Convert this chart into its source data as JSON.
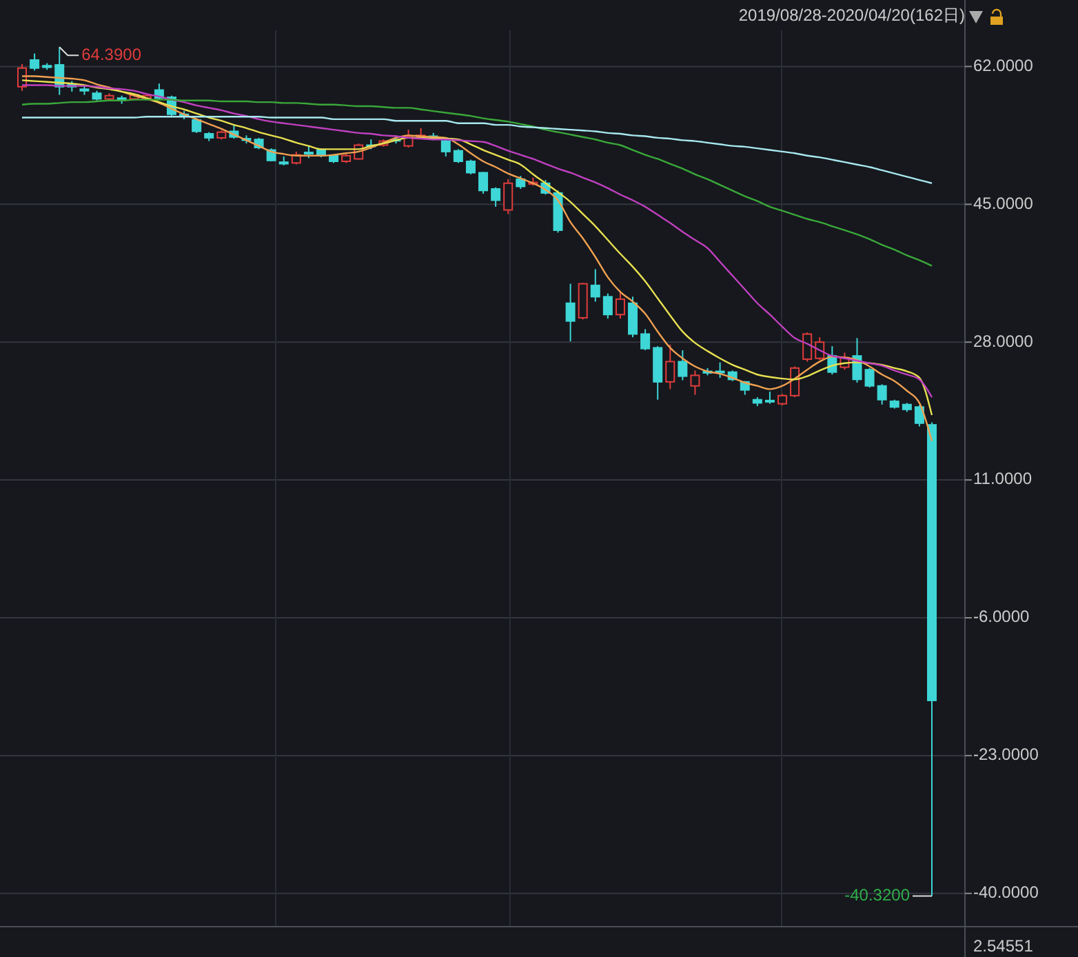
{
  "chart_data": {
    "type": "candlestick",
    "title": "2019/08/28-2020/04/20(162日)",
    "categories": [
      null,
      null,
      null,
      null,
      null,
      null,
      null,
      null,
      null,
      null,
      null,
      null,
      null,
      null,
      null,
      null,
      null,
      null,
      null,
      null,
      null,
      null,
      null,
      null,
      null,
      null,
      null,
      null,
      null,
      null,
      null,
      null,
      null,
      null,
      null,
      null,
      null,
      null,
      null,
      null,
      null,
      null,
      null,
      null,
      null,
      null,
      null,
      null,
      null,
      null,
      null,
      null,
      null,
      null,
      null,
      null,
      null,
      null,
      null,
      null,
      null,
      null,
      null,
      null,
      null,
      null,
      null,
      null,
      null,
      null,
      null,
      null,
      null,
      null
    ],
    "ylim": [
      -44.1,
      70.2
    ],
    "yticks": [
      {
        "value": 62,
        "label": "62.0000"
      },
      {
        "value": 45,
        "label": "45.0000"
      },
      {
        "value": 28,
        "label": "28.0000"
      },
      {
        "value": 11,
        "label": "11.0000"
      },
      {
        "value": -6,
        "label": "-6.0000"
      },
      {
        "value": -23,
        "label": "-23.0000"
      },
      {
        "value": -40,
        "label": "-40.0000"
      }
    ],
    "grid": "y",
    "annotations": [
      "64.3900",
      "-40.3200",
      "2.54551"
    ],
    "ohlc": [
      [
        59.5,
        62.3,
        59.0,
        61.8
      ],
      [
        62.8,
        63.6,
        61.5,
        61.8
      ],
      [
        62.1,
        62.4,
        61.6,
        61.9
      ],
      [
        62.2,
        64.39,
        58.5,
        59.5
      ],
      [
        59.8,
        60.2,
        58.9,
        59.5
      ],
      [
        59.2,
        59.6,
        58.5,
        59.0
      ],
      [
        58.7,
        59.0,
        57.8,
        58.0
      ],
      [
        58.0,
        58.7,
        57.8,
        58.4
      ],
      [
        58.1,
        58.4,
        57.4,
        57.9
      ],
      [
        58.0,
        58.7,
        57.9,
        58.5
      ],
      [
        58.1,
        58.6,
        57.9,
        58.4
      ],
      [
        59.1,
        59.9,
        57.9,
        58.1
      ],
      [
        58.2,
        58.4,
        55.8,
        56.1
      ],
      [
        56.1,
        56.5,
        55.5,
        55.9
      ],
      [
        55.4,
        55.6,
        53.8,
        54.0
      ],
      [
        53.7,
        53.9,
        52.8,
        53.2
      ],
      [
        53.2,
        54.1,
        53.0,
        53.9
      ],
      [
        54.0,
        54.8,
        53.1,
        53.3
      ],
      [
        53.1,
        53.5,
        52.5,
        52.9
      ],
      [
        53.0,
        53.2,
        51.8,
        52.0
      ],
      [
        51.7,
        51.9,
        50.3,
        50.4
      ],
      [
        50.2,
        50.9,
        49.8,
        50.0
      ],
      [
        50.1,
        51.5,
        49.9,
        51.1
      ],
      [
        51.4,
        52.2,
        50.7,
        51.3
      ],
      [
        51.7,
        51.9,
        50.8,
        51.0
      ],
      [
        51.0,
        51.1,
        50.1,
        50.3
      ],
      [
        50.3,
        51.2,
        50.1,
        51.0
      ],
      [
        50.6,
        52.5,
        50.5,
        52.3
      ],
      [
        52.3,
        53.0,
        51.8,
        52.2
      ],
      [
        52.3,
        53.0,
        52.1,
        52.8
      ],
      [
        53.0,
        53.5,
        52.5,
        52.9
      ],
      [
        52.2,
        54.2,
        52.0,
        53.4
      ],
      [
        53.3,
        54.4,
        53.1,
        53.5
      ],
      [
        53.4,
        53.8,
        52.9,
        53.1
      ],
      [
        52.8,
        53.0,
        50.9,
        51.5
      ],
      [
        51.6,
        51.8,
        50.1,
        50.3
      ],
      [
        50.3,
        50.5,
        48.7,
        48.9
      ],
      [
        48.9,
        49.0,
        46.3,
        46.7
      ],
      [
        46.9,
        47.1,
        44.7,
        45.5
      ],
      [
        44.3,
        48.1,
        43.8,
        47.6
      ],
      [
        48.1,
        48.5,
        46.9,
        47.2
      ],
      [
        47.5,
        48.3,
        47.3,
        47.7
      ],
      [
        47.6,
        48.0,
        46.2,
        46.4
      ],
      [
        46.4,
        46.7,
        41.5,
        41.8
      ],
      [
        32.8,
        35.2,
        28.1,
        30.6
      ],
      [
        31.0,
        35.3,
        30.8,
        35.2
      ],
      [
        35.0,
        37.0,
        33.0,
        33.6
      ],
      [
        33.6,
        34.0,
        30.9,
        31.4
      ],
      [
        31.4,
        34.3,
        30.9,
        33.3
      ],
      [
        32.8,
        33.6,
        28.6,
        29.0
      ],
      [
        29.0,
        29.6,
        27.0,
        27.2
      ],
      [
        27.3,
        27.5,
        20.9,
        23.1
      ],
      [
        23.1,
        27.7,
        22.2,
        25.6
      ],
      [
        25.6,
        27.0,
        23.3,
        23.8
      ],
      [
        22.6,
        24.5,
        21.5,
        23.9
      ],
      [
        24.4,
        24.8,
        23.9,
        24.2
      ],
      [
        24.4,
        25.5,
        23.6,
        24.3
      ],
      [
        24.3,
        24.5,
        23.2,
        23.4
      ],
      [
        23.1,
        23.2,
        21.5,
        22.1
      ],
      [
        20.9,
        21.2,
        20.1,
        20.5
      ],
      [
        20.8,
        21.9,
        20.4,
        20.7
      ],
      [
        20.4,
        21.6,
        20.2,
        21.4
      ],
      [
        21.4,
        25.0,
        21.2,
        24.8
      ],
      [
        25.9,
        29.2,
        25.6,
        29.0
      ],
      [
        26.0,
        28.6,
        25.8,
        28.0
      ],
      [
        26.3,
        27.5,
        24.0,
        24.3
      ],
      [
        24.9,
        26.7,
        24.6,
        26.1
      ],
      [
        26.3,
        28.5,
        23.0,
        23.4
      ],
      [
        24.6,
        24.8,
        22.4,
        22.6
      ],
      [
        22.6,
        22.8,
        20.3,
        20.9
      ],
      [
        20.7,
        20.9,
        19.8,
        20.0
      ],
      [
        20.3,
        20.5,
        19.4,
        19.7
      ],
      [
        20.0,
        20.2,
        17.6,
        18.0
      ],
      [
        17.8,
        18.1,
        -40.32,
        -16.2
      ]
    ],
    "colors": [
      "#e03c3c",
      "#3ed6d6",
      "#3ed6d6",
      "#3ed6d6",
      "#3ed6d6",
      "#3ed6d6",
      "#3ed6d6",
      "#e03c3c",
      "#3ed6d6",
      "#e03c3c",
      "#e03c3c",
      "#3ed6d6",
      "#3ed6d6",
      "#3ed6d6",
      "#3ed6d6",
      "#3ed6d6",
      "#e03c3c",
      "#3ed6d6",
      "#3ed6d6",
      "#3ed6d6",
      "#3ed6d6",
      "#3ed6d6",
      "#e03c3c",
      "#3ed6d6",
      "#3ed6d6",
      "#3ed6d6",
      "#e03c3c",
      "#e03c3c",
      "#3ed6d6",
      "#e03c3c",
      "#3ed6d6",
      "#e03c3c",
      "#e03c3c",
      "#3ed6d6",
      "#3ed6d6",
      "#3ed6d6",
      "#3ed6d6",
      "#3ed6d6",
      "#3ed6d6",
      "#e03c3c",
      "#3ed6d6",
      "#e03c3c",
      "#3ed6d6",
      "#3ed6d6",
      "#3ed6d6",
      "#e03c3c",
      "#3ed6d6",
      "#3ed6d6",
      "#e03c3c",
      "#3ed6d6",
      "#3ed6d6",
      "#3ed6d6",
      "#e03c3c",
      "#3ed6d6",
      "#e03c3c",
      "#3ed6d6",
      "#3ed6d6",
      "#3ed6d6",
      "#3ed6d6",
      "#3ed6d6",
      "#3ed6d6",
      "#e03c3c",
      "#e03c3c",
      "#e03c3c",
      "#e03c3c",
      "#3ed6d6",
      "#e03c3c",
      "#3ed6d6",
      "#3ed6d6",
      "#3ed6d6",
      "#3ed6d6",
      "#3ed6d6",
      "#3ed6d6",
      "#3ed6d6"
    ],
    "series": [
      {
        "type": "line",
        "color": "#f0a050",
        "values": [
          60.8,
          60.8,
          60.7,
          60.6,
          60.5,
          60.3,
          59.8,
          59.4,
          58.9,
          58.4,
          58.0,
          57.5,
          56.8,
          56.1,
          55.5,
          54.9,
          54.3,
          53.6,
          52.9,
          52.2,
          51.5,
          51.2,
          51.0,
          51.0,
          51.0,
          51.1,
          51.3,
          51.5,
          52.0,
          52.6,
          53.2,
          53.5,
          53.4,
          53.3,
          53.2,
          52.4,
          51.3,
          50.3,
          49.6,
          48.8,
          48.2,
          47.6,
          46.8,
          45.5,
          42.8,
          40.8,
          38.5,
          36.0,
          34.2,
          33.0,
          31.5,
          29.3,
          27.3,
          26.0,
          25.0,
          24.4,
          24.1,
          23.6,
          23.0,
          22.6,
          22.2,
          22.6,
          23.5,
          24.6,
          25.6,
          26.2,
          26.1,
          25.8,
          25.0,
          24.0,
          23.2,
          22.0,
          20.5,
          15.8
        ]
      },
      {
        "type": "line",
        "color": "#e8e050",
        "values": [
          60.3,
          60.2,
          60.1,
          60.0,
          59.9,
          59.7,
          59.4,
          59.2,
          58.9,
          58.6,
          58.1,
          57.6,
          57.1,
          56.7,
          56.2,
          55.7,
          55.3,
          54.8,
          54.4,
          53.9,
          53.5,
          53.1,
          52.6,
          52.2,
          51.8,
          51.8,
          51.8,
          51.8,
          52.2,
          52.5,
          52.9,
          53.2,
          53.2,
          53.1,
          53.1,
          53.0,
          52.4,
          51.7,
          51.1,
          50.5,
          49.9,
          48.7,
          47.6,
          46.5,
          45.3,
          43.8,
          42.3,
          40.6,
          38.9,
          37.3,
          35.5,
          33.4,
          31.3,
          29.3,
          27.9,
          26.9,
          26.0,
          25.2,
          24.6,
          24.0,
          23.7,
          23.5,
          23.4,
          23.8,
          24.5,
          25.1,
          25.4,
          25.5,
          25.4,
          25.2,
          24.8,
          24.4,
          23.6,
          19.0
        ]
      },
      {
        "type": "line",
        "color": "#c040c0",
        "values": [
          59.7,
          59.7,
          59.7,
          59.6,
          59.6,
          59.6,
          59.5,
          59.3,
          59.2,
          59.0,
          58.6,
          58.3,
          57.9,
          57.6,
          57.2,
          56.9,
          56.6,
          56.2,
          55.9,
          55.5,
          55.2,
          55.0,
          54.8,
          54.6,
          54.4,
          54.2,
          54.0,
          53.8,
          53.7,
          53.5,
          53.4,
          53.2,
          53.1,
          53.0,
          53.0,
          52.9,
          52.8,
          52.7,
          52.2,
          51.6,
          51.1,
          50.6,
          50.0,
          49.4,
          48.9,
          48.3,
          47.7,
          47.0,
          46.2,
          45.5,
          44.7,
          43.7,
          42.7,
          41.6,
          40.6,
          39.6,
          37.9,
          36.2,
          34.5,
          32.8,
          31.4,
          29.9,
          28.5,
          27.8,
          27.0,
          26.3,
          26.0,
          25.7,
          25.4,
          25.1,
          24.5,
          24.0,
          23.4,
          21.2
        ]
      },
      {
        "type": "line",
        "color": "#3aa83a",
        "values": [
          57.3,
          57.4,
          57.4,
          57.5,
          57.6,
          57.6,
          57.7,
          57.8,
          57.8,
          57.9,
          57.9,
          57.9,
          57.9,
          57.8,
          57.8,
          57.8,
          57.7,
          57.7,
          57.7,
          57.6,
          57.6,
          57.5,
          57.5,
          57.4,
          57.3,
          57.3,
          57.2,
          57.1,
          57.1,
          57.0,
          56.9,
          56.9,
          56.7,
          56.5,
          56.3,
          56.1,
          55.9,
          55.6,
          55.4,
          55.2,
          54.9,
          54.6,
          54.2,
          53.9,
          53.6,
          53.3,
          53.0,
          52.6,
          52.3,
          51.7,
          51.1,
          50.6,
          50.0,
          49.4,
          48.7,
          48.1,
          47.4,
          46.7,
          46.0,
          45.4,
          44.7,
          44.2,
          43.7,
          43.2,
          42.8,
          42.3,
          41.8,
          41.3,
          40.7,
          40.0,
          39.4,
          38.7,
          38.1,
          37.4
        ]
      },
      {
        "type": "line",
        "color": "#a8e8f0",
        "values": [
          55.7,
          55.7,
          55.7,
          55.7,
          55.7,
          55.7,
          55.7,
          55.7,
          55.7,
          55.7,
          55.8,
          55.8,
          55.8,
          55.8,
          55.8,
          55.8,
          55.8,
          55.8,
          55.8,
          55.8,
          55.7,
          55.7,
          55.7,
          55.7,
          55.7,
          55.5,
          55.5,
          55.5,
          55.5,
          55.5,
          55.3,
          55.3,
          55.3,
          55.3,
          55.3,
          55.0,
          55.0,
          55.0,
          54.8,
          54.8,
          54.6,
          54.5,
          54.4,
          54.3,
          54.2,
          54.1,
          54.0,
          53.8,
          53.7,
          53.5,
          53.4,
          53.2,
          53.1,
          52.9,
          52.8,
          52.6,
          52.4,
          52.2,
          52.1,
          51.9,
          51.7,
          51.5,
          51.3,
          51.0,
          50.8,
          50.5,
          50.2,
          49.9,
          49.6,
          49.2,
          48.8,
          48.4,
          48.0,
          47.6
        ]
      }
    ]
  }
}
